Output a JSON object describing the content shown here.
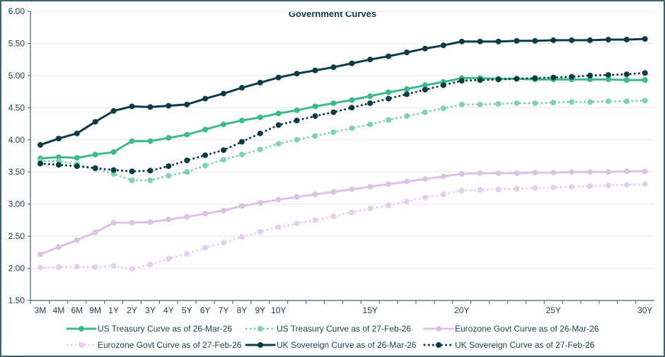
{
  "chart_data": {
    "type": "line",
    "title": "Government Curves",
    "xlabel": "",
    "ylabel": "",
    "ylim": [
      1.5,
      6.0
    ],
    "yticks": [
      "1.50",
      "2.00",
      "2.50",
      "3.00",
      "3.50",
      "4.00",
      "4.50",
      "5.00",
      "5.50",
      "6.00"
    ],
    "grid": true,
    "legend_position": "bottom",
    "categories": [
      "3M",
      "4M",
      "6M",
      "9M",
      "1Y",
      "2Y",
      "3Y",
      "4Y",
      "5Y",
      "6Y",
      "7Y",
      "8Y",
      "9Y",
      "10Y",
      "11Y",
      "12Y",
      "13Y",
      "14Y",
      "15Y",
      "16Y",
      "17Y",
      "18Y",
      "19Y",
      "20Y",
      "21Y",
      "22Y",
      "23Y",
      "24Y",
      "25Y",
      "26Y",
      "27Y",
      "28Y",
      "29Y",
      "30Y"
    ],
    "tick_labels": [
      "3M",
      "4M",
      "6M",
      "9M",
      "1Y",
      "2Y",
      "3Y",
      "4Y",
      "5Y",
      "6Y",
      "7Y",
      "8Y",
      "9Y",
      "10Y",
      "",
      "",
      "",
      "",
      "15Y",
      "",
      "",
      "",
      "",
      "20Y",
      "",
      "",
      "",
      "",
      "25Y",
      "",
      "",
      "",
      "",
      "30Y"
    ],
    "series": [
      {
        "name": "US Treasury Curve as of 26-Mar-26",
        "color": "#3dba8c",
        "style": "solid",
        "values": [
          3.71,
          3.73,
          3.72,
          3.77,
          3.81,
          3.98,
          3.98,
          4.03,
          4.08,
          4.16,
          4.24,
          4.3,
          4.35,
          4.41,
          4.46,
          4.52,
          4.57,
          4.62,
          4.68,
          4.74,
          4.79,
          4.85,
          4.9,
          4.96,
          4.96,
          4.95,
          4.95,
          4.94,
          4.94,
          4.94,
          4.94,
          4.94,
          4.93,
          4.93
        ]
      },
      {
        "name": "US Treasury Curve as of 27-Feb-26",
        "color": "#7fd3b0",
        "style": "dotted",
        "values": [
          3.67,
          3.67,
          3.62,
          3.55,
          3.47,
          3.37,
          3.37,
          3.44,
          3.5,
          3.6,
          3.69,
          3.77,
          3.85,
          3.94,
          4.0,
          4.06,
          4.12,
          4.18,
          4.24,
          4.31,
          4.37,
          4.43,
          4.49,
          4.55,
          4.55,
          4.56,
          4.57,
          4.57,
          4.58,
          4.59,
          4.59,
          4.6,
          4.6,
          4.61
        ]
      },
      {
        "name": "Eurozone Govt Curve as of 26-Mar-26",
        "color": "#dcc3e6",
        "style": "solid",
        "values": [
          2.22,
          2.33,
          2.44,
          2.56,
          2.71,
          2.71,
          2.72,
          2.76,
          2.8,
          2.85,
          2.9,
          2.97,
          3.02,
          3.07,
          3.11,
          3.15,
          3.19,
          3.23,
          3.27,
          3.31,
          3.35,
          3.39,
          3.43,
          3.47,
          3.48,
          3.48,
          3.48,
          3.49,
          3.49,
          3.5,
          3.5,
          3.5,
          3.51,
          3.51
        ]
      },
      {
        "name": "Eurozone Govt Curve as of 27-Feb-26",
        "color": "#e4cfec",
        "style": "dotted",
        "values": [
          2.01,
          2.02,
          2.03,
          2.02,
          2.04,
          1.99,
          2.06,
          2.15,
          2.23,
          2.32,
          2.4,
          2.49,
          2.57,
          2.64,
          2.7,
          2.75,
          2.81,
          2.87,
          2.93,
          2.98,
          3.04,
          3.1,
          3.15,
          3.21,
          3.22,
          3.23,
          3.24,
          3.25,
          3.26,
          3.27,
          3.28,
          3.29,
          3.3,
          3.31
        ]
      },
      {
        "name": "UK Sovereign Curve as of 26-Mar-26",
        "color": "#0b3b45",
        "style": "solid",
        "values": [
          3.92,
          4.02,
          4.1,
          4.28,
          4.45,
          4.52,
          4.51,
          4.53,
          4.55,
          4.64,
          4.72,
          4.81,
          4.89,
          4.97,
          5.03,
          5.08,
          5.13,
          5.19,
          5.25,
          5.3,
          5.36,
          5.42,
          5.47,
          5.53,
          5.53,
          5.53,
          5.54,
          5.54,
          5.55,
          5.55,
          5.55,
          5.56,
          5.56,
          5.57
        ]
      },
      {
        "name": "UK Sovereign Curve as of 27-Feb-26",
        "color": "#0b3b45",
        "style": "dotted",
        "values": [
          3.63,
          3.61,
          3.59,
          3.56,
          3.53,
          3.51,
          3.52,
          3.59,
          3.68,
          3.76,
          3.84,
          3.97,
          4.1,
          4.23,
          4.3,
          4.37,
          4.43,
          4.5,
          4.57,
          4.64,
          4.71,
          4.78,
          4.85,
          4.92,
          4.93,
          4.94,
          4.95,
          4.96,
          4.97,
          4.98,
          5.0,
          5.01,
          5.02,
          5.04
        ]
      }
    ]
  }
}
